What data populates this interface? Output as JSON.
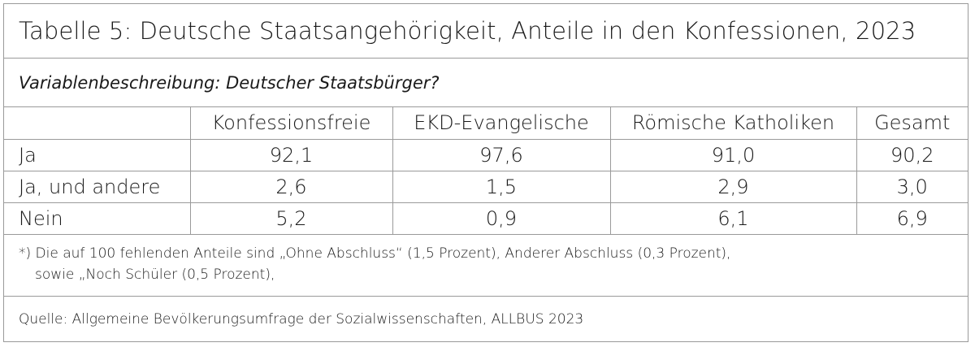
{
  "title": "Tabelle 5: Deutsche Staatsangehörigkeit, Anteile in den Konfessionen, 2023",
  "description": "Variablenbeschreibung: Deutscher Staatsbürger?",
  "table": {
    "headers": [
      "",
      "Konfessionsfreie",
      "EKD-Evangelische",
      "Römische Katholiken",
      "Gesamt"
    ],
    "rows": [
      {
        "label": "Ja",
        "values": [
          "92,1",
          "97,6",
          "91,0",
          "90,2"
        ]
      },
      {
        "label": "Ja, und andere",
        "values": [
          "2,6",
          "1,5",
          "2,9",
          "3,0"
        ]
      },
      {
        "label": "Nein",
        "values": [
          "5,2",
          "0,9",
          "6,1",
          "6,9"
        ]
      }
    ]
  },
  "footnote": {
    "line1": "*) Die auf 100 fehlenden Anteile sind „Ohne Abschluss“ (1,5 Prozent), Anderer Abschluss (0,3 Prozent),",
    "line2": "sowie „Noch Schüler (0,5 Prozent),"
  },
  "source": "Quelle: Allgemeine Bevölkerungsumfrage der Sozialwissenschaften, ALLBUS 2023"
}
